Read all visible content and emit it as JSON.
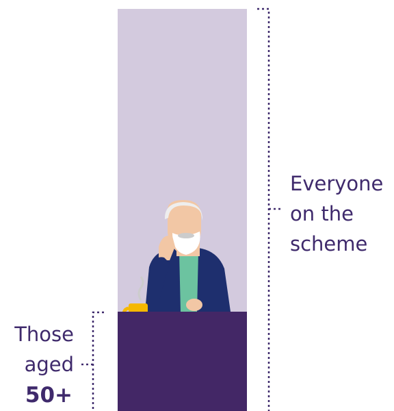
{
  "labels": {
    "everyone": [
      "Everyone",
      "on the",
      "scheme"
    ],
    "subgroup": [
      "Those",
      "aged",
      "50+"
    ]
  }
}
